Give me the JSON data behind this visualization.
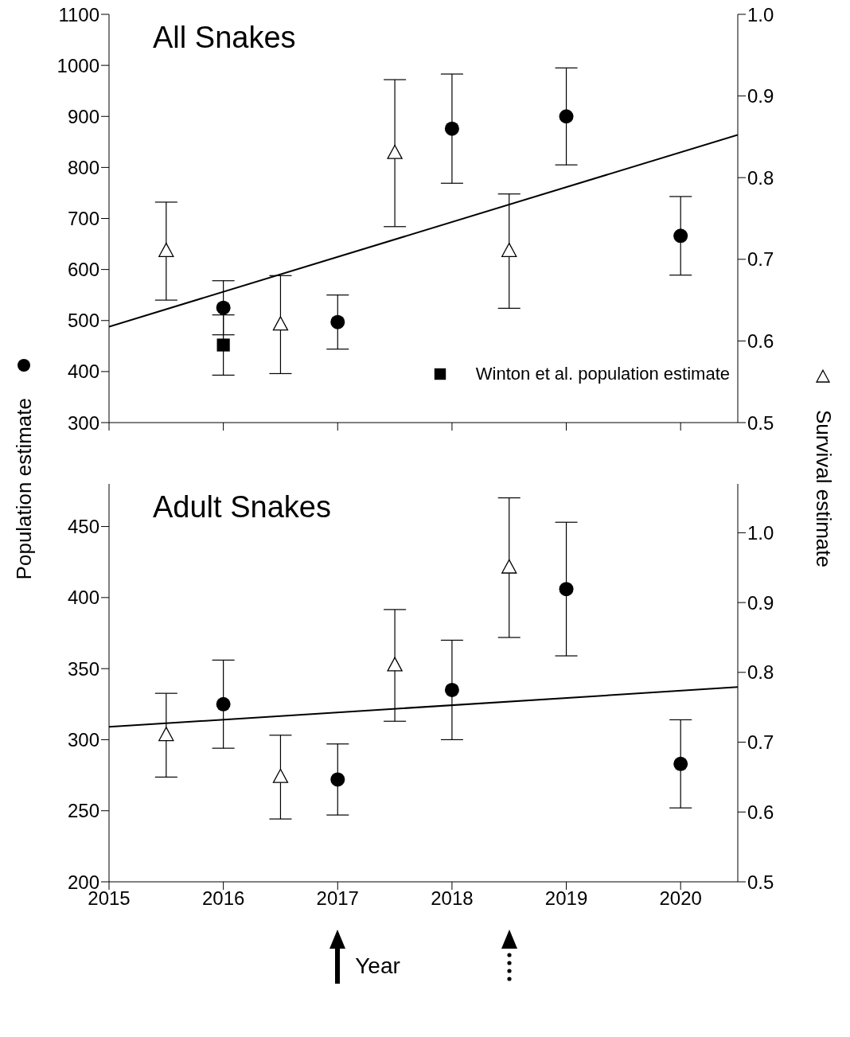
{
  "chart_data": [
    {
      "type": "scatter",
      "title": "All Snakes",
      "ylabel": "Population estimate",
      "y2label": "Survival estimate",
      "xlim": [
        2015,
        2020.5
      ],
      "xticks": [
        2015,
        2016,
        2017,
        2018,
        2019,
        2020
      ],
      "ylim": [
        300,
        1100
      ],
      "yticks": [
        300,
        400,
        500,
        600,
        700,
        800,
        900,
        1000,
        1100
      ],
      "y2lim": [
        0.5,
        1
      ],
      "y2ticks": [
        0.5,
        0.6,
        0.7,
        0.8,
        0.9,
        {
          "value": 1,
          "label": "1.0"
        }
      ],
      "tick_labels": "y",
      "legend": "bottom right",
      "series": [
        {
          "marker": "circle",
          "color": "#000000",
          "x": [
            2016,
            2017,
            2018,
            2019,
            2020
          ],
          "values": [
            525,
            497,
            876,
            900,
            666
          ],
          "errors": [
            53,
            53,
            107,
            95,
            77
          ]
        },
        {
          "marker": "triangle",
          "axis": "y2",
          "color": "#000000",
          "x": [
            2015.5,
            2016.5,
            2017.5,
            2018.5
          ],
          "values": [
            0.71,
            0.62,
            0.83,
            0.71
          ],
          "errors": [
            0.06,
            0.06,
            0.09,
            0.07
          ]
        },
        {
          "marker": "square",
          "name": "Winton et al. population estimate",
          "color": "#000000",
          "x": [
            2016
          ],
          "values": [
            452
          ],
          "errors": [
            59
          ]
        },
        {
          "type": "line",
          "marker": "none",
          "line_style": "solid",
          "color": "#000000",
          "x": [
            2015,
            2020.5
          ],
          "values": [
            488,
            864
          ]
        }
      ]
    },
    {
      "type": "scatter",
      "title": "Adult Snakes",
      "xlabel": "Year",
      "xlim": [
        2015,
        2020.5
      ],
      "xticks": [
        2015,
        2016,
        2017,
        2018,
        2019,
        2020
      ],
      "ylim": [
        200,
        480
      ],
      "yticks": [
        200,
        250,
        300,
        350,
        400,
        450
      ],
      "y2lim": [
        0.5,
        1.07
      ],
      "y2ticks": [
        0.5,
        0.6,
        0.7,
        0.8,
        0.9,
        {
          "value": 1,
          "label": "1.0"
        }
      ],
      "series": [
        {
          "marker": "circle",
          "color": "#000000",
          "x": [
            2016,
            2017,
            2018,
            2019,
            2020
          ],
          "values": [
            325,
            272,
            335,
            406,
            283
          ],
          "errors": [
            31,
            25,
            35,
            47,
            31
          ]
        },
        {
          "marker": "triangle",
          "axis": "y2",
          "color": "#000000",
          "x": [
            2015.5,
            2016.5,
            2017.5,
            2018.5
          ],
          "values": [
            0.71,
            0.65,
            0.81,
            0.95
          ],
          "errors": [
            0.06,
            0.06,
            0.08,
            0.1
          ]
        },
        {
          "type": "line",
          "marker": "none",
          "line_style": "solid",
          "color": "#000000",
          "x": [
            2015,
            2020.5
          ],
          "values": [
            309,
            337
          ]
        }
      ]
    }
  ]
}
